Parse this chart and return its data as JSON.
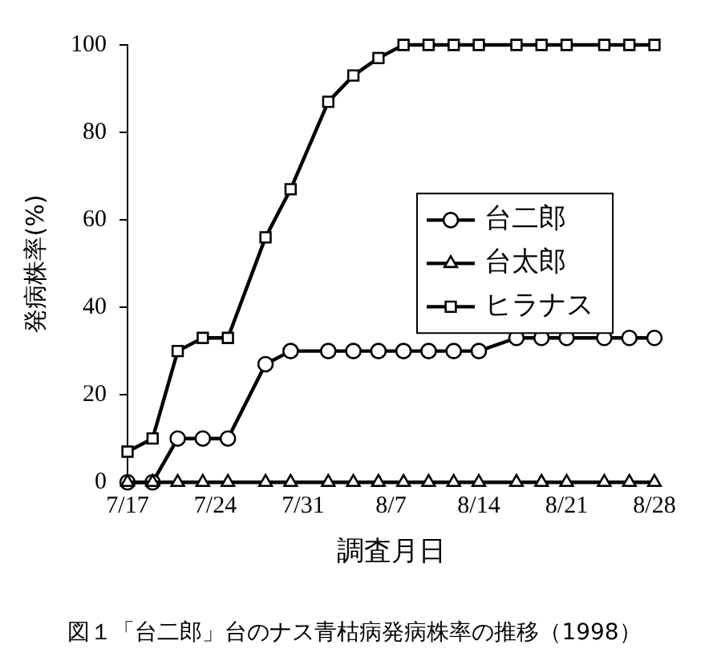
{
  "chart_data": {
    "type": "line",
    "xlabel": "調査月日",
    "ylabel": "発病株率(%)",
    "annotations": [
      "図１「台二郎」台のナス青枯病発病株率の推移（1998）"
    ],
    "x": [
      "--07-17",
      "--07-19",
      "--07-21",
      "--07-23",
      "--07-25",
      "--07-28",
      "--07-30",
      "--08-02",
      "--08-04",
      "--08-06",
      "--08-08",
      "--08-10",
      "--08-12",
      "--08-14",
      "--08-17",
      "--08-19",
      "--08-21",
      "--08-24",
      "--08-26",
      "--08-28"
    ],
    "series": [
      {
        "name": "台二郎",
        "color": "#000000",
        "marker": "circle",
        "values": [
          0,
          0,
          10,
          10,
          10,
          27,
          30,
          30,
          30,
          30,
          30,
          30,
          30,
          30,
          33,
          33,
          33,
          33,
          33,
          33
        ]
      },
      {
        "name": "台太郎",
        "color": "#000000",
        "marker": "triangle",
        "values": [
          0,
          0,
          0,
          0,
          0,
          0,
          0,
          0,
          0,
          0,
          0,
          0,
          0,
          0,
          0,
          0,
          0,
          0,
          0,
          0
        ]
      },
      {
        "name": "ヒラナス",
        "color": "#000000",
        "marker": "square",
        "values": [
          7,
          10,
          30,
          33,
          33,
          56,
          67,
          87,
          93,
          97,
          100,
          100,
          100,
          100,
          100,
          100,
          100,
          100,
          100,
          100
        ]
      }
    ],
    "xlim": [
      "--07-17",
      "--08-28"
    ],
    "xticks": [
      {
        "value": "--07-17",
        "label": "7/17"
      },
      {
        "value": "--07-24",
        "label": "7/24"
      },
      {
        "value": "--07-31",
        "label": "7/31"
      },
      {
        "value": "--08-07",
        "label": "8/7"
      },
      {
        "value": "--08-14",
        "label": "8/14"
      },
      {
        "value": "--08-21",
        "label": "8/21"
      },
      {
        "value": "--08-28",
        "label": "8/28"
      }
    ],
    "ylim": [
      0,
      100
    ],
    "yticks": [
      0,
      20,
      40,
      60,
      80,
      100
    ],
    "grid": false,
    "legend": "right",
    "line_style": "solid"
  }
}
